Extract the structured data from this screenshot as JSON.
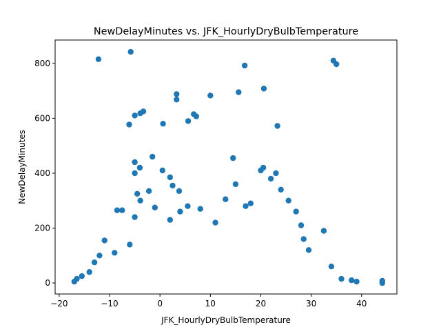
{
  "chart_data": {
    "type": "scatter",
    "title": "NewDelayMinutes vs. JFK_HourlyDryBulbTemperature",
    "xlabel": "JFK_HourlyDryBulbTemperature",
    "ylabel": "NewDelayMinutes",
    "xlim": [
      -20.8,
      47
    ],
    "ylim": [
      -40,
      885
    ],
    "xticks": [
      -20,
      -10,
      0,
      10,
      20,
      30,
      40
    ],
    "yticks": [
      0,
      200,
      400,
      600,
      800
    ],
    "grid": false,
    "color": "#1f77b4",
    "series": [
      {
        "points": [
          [
            -12.2,
            815
          ],
          [
            -5.8,
            842
          ],
          [
            16.8,
            792
          ],
          [
            34.4,
            810
          ],
          [
            35.0,
            797
          ],
          [
            20.6,
            708
          ],
          [
            15.6,
            695
          ],
          [
            10.0,
            683
          ],
          [
            3.3,
            688
          ],
          [
            3.3,
            668
          ],
          [
            -3.3,
            625
          ],
          [
            -3.9,
            618
          ],
          [
            -5.0,
            610
          ],
          [
            6.7,
            615
          ],
          [
            7.2,
            607
          ],
          [
            -6.1,
            577
          ],
          [
            5.6,
            590
          ],
          [
            0.6,
            580
          ],
          [
            23.3,
            572
          ],
          [
            -17.0,
            5
          ],
          [
            -16.5,
            15
          ],
          [
            -15.5,
            25
          ],
          [
            -14.0,
            40
          ],
          [
            -13.0,
            75
          ],
          [
            -12.0,
            100
          ],
          [
            -11.0,
            155
          ],
          [
            -8.5,
            265
          ],
          [
            -7.5,
            265
          ],
          [
            -5.0,
            240
          ],
          [
            -4.5,
            325
          ],
          [
            -3.9,
            300
          ],
          [
            -2.2,
            335
          ],
          [
            -1.0,
            275
          ],
          [
            -6.0,
            140
          ],
          [
            -9.0,
            110
          ],
          [
            2.0,
            230
          ],
          [
            4.0,
            260
          ],
          [
            5.5,
            280
          ],
          [
            8.0,
            270
          ],
          [
            11.0,
            220
          ],
          [
            13.0,
            305
          ],
          [
            15.0,
            360
          ],
          [
            17.0,
            280
          ],
          [
            18.0,
            290
          ],
          [
            20.5,
            420
          ],
          [
            22.0,
            380
          ],
          [
            23.0,
            400
          ],
          [
            24.0,
            340
          ],
          [
            25.5,
            300
          ],
          [
            27.0,
            260
          ],
          [
            28.0,
            210
          ],
          [
            28.5,
            160
          ],
          [
            29.5,
            120
          ],
          [
            32.5,
            190
          ],
          [
            34.0,
            60
          ],
          [
            36.0,
            15
          ],
          [
            38.0,
            10
          ],
          [
            39.0,
            5
          ],
          [
            44.1,
            8
          ],
          [
            44.1,
            0
          ],
          [
            -5.0,
            440
          ],
          [
            -4.0,
            420
          ],
          [
            -5.0,
            400
          ],
          [
            -1.5,
            460
          ],
          [
            0.5,
            410
          ],
          [
            2.0,
            385
          ],
          [
            2.5,
            355
          ],
          [
            3.8,
            335
          ],
          [
            14.5,
            455
          ],
          [
            20.0,
            410
          ]
        ]
      }
    ]
  }
}
